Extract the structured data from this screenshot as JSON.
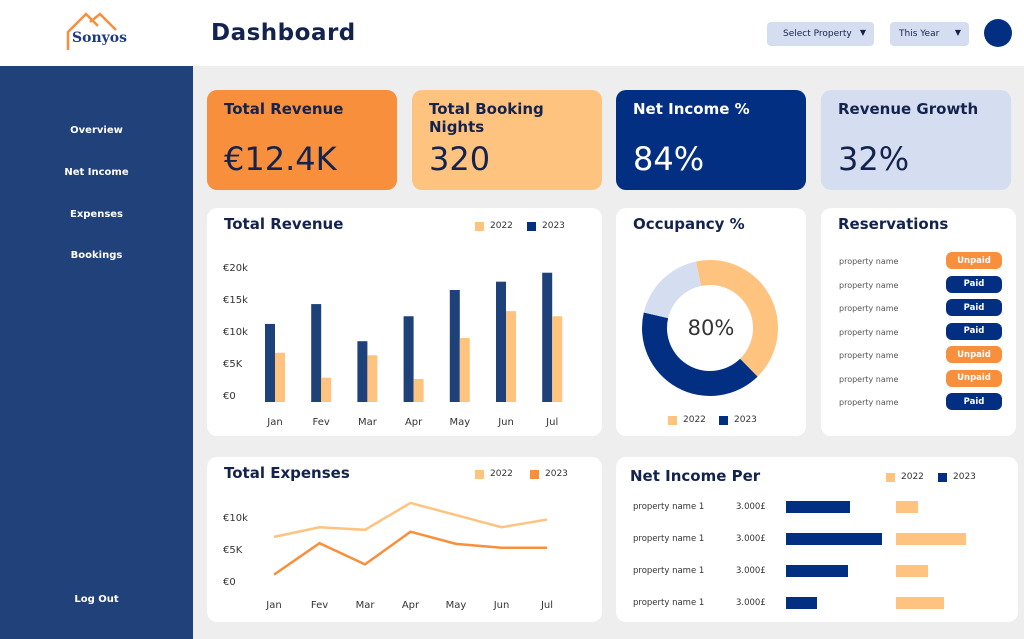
{
  "app": {
    "logo_text": "Sonyos",
    "title": "Dashboard"
  },
  "header": {
    "property_select": "Select Property",
    "period_select": "This Year",
    "dropdown_glyph": "▼"
  },
  "sidebar": {
    "items": [
      {
        "label": "Overview"
      },
      {
        "label": "Net Income"
      },
      {
        "label": "Expenses"
      },
      {
        "label": "Bookings"
      }
    ],
    "logout": "Log Out"
  },
  "kpis": [
    {
      "title": "Total Revenue",
      "value": "€12.4K",
      "color": "#f78f3d"
    },
    {
      "title": "Total Booking Nights",
      "value": "320",
      "color": "#ffc380"
    },
    {
      "title": "Net Income %",
      "value": "84%",
      "color": "#032f82"
    },
    {
      "title": "Revenue Growth",
      "value": "32%",
      "color": "#d5def0"
    }
  ],
  "colors": {
    "navy": "#1f4179",
    "dark_navy": "#032f82",
    "orange": "#f78f3d",
    "light_orange": "#ffc380",
    "light_blue": "#d5def0"
  },
  "chart_data": [
    {
      "type": "bar",
      "title": "Total Revenue",
      "categories": [
        "Jan",
        "Fev",
        "Mar",
        "Apr",
        "May",
        "Jun",
        "Jul"
      ],
      "yticks": [
        "€0",
        "€5K",
        "€10k",
        "€15k",
        "€20k"
      ],
      "ylim": [
        0,
        20000
      ],
      "legend": "top-right",
      "series": [
        {
          "name": "2022",
          "color": "#ffc380",
          "values": [
            7700,
            3800,
            7300,
            3600,
            10000,
            14200,
            13400
          ]
        },
        {
          "name": "2023",
          "color": "#1f4179",
          "values": [
            12200,
            15300,
            9500,
            13400,
            17500,
            18800,
            20200
          ]
        }
      ]
    },
    {
      "type": "pie",
      "title": "Occupancy %",
      "center_label": "80%",
      "legend": "bottom",
      "slices": [
        {
          "name": "2022",
          "value": 41,
          "color": "#ffc380"
        },
        {
          "name": "2023",
          "value": 41,
          "color": "#032f82"
        },
        {
          "name": "",
          "value": 18,
          "color": "#d5def0"
        }
      ]
    },
    {
      "type": "line",
      "title": "Total Expenses",
      "categories": [
        "Jan",
        "Fev",
        "Mar",
        "Apr",
        "May",
        "Jun",
        "Jul"
      ],
      "yticks": [
        "€0",
        "€5K",
        "€10k"
      ],
      "ylim": [
        0,
        10000
      ],
      "legend": "top-right",
      "series": [
        {
          "name": "2022",
          "color": "#ffc380",
          "values": [
            6900,
            8400,
            8000,
            12200,
            10300,
            8400,
            9600
          ]
        },
        {
          "name": "2023",
          "color": "#f78f3d",
          "values": [
            1000,
            5900,
            2600,
            7700,
            5800,
            5200,
            5200
          ]
        }
      ]
    },
    {
      "type": "bar",
      "orientation": "horizontal",
      "title": "Net Income Per",
      "legend": "top-right",
      "categories": [
        "property name 1",
        "property name 1",
        "property name 1",
        "property name 1"
      ],
      "value_labels": [
        "3.000£",
        "3.000£",
        "3.000£",
        "3.000£"
      ],
      "series": [
        {
          "name": "2022",
          "color": "#ffc380",
          "values": [
            22,
            70,
            32,
            48
          ]
        },
        {
          "name": "2023",
          "color": "#032f82",
          "values": [
            64,
            96,
            62,
            31
          ]
        }
      ]
    }
  ],
  "reservations": {
    "title": "Reservations",
    "rows": [
      {
        "name": "property name",
        "status": "Unpaid"
      },
      {
        "name": "property name",
        "status": "Paid"
      },
      {
        "name": "property name",
        "status": "Paid"
      },
      {
        "name": "property name",
        "status": "Paid"
      },
      {
        "name": "property name",
        "status": "Unpaid"
      },
      {
        "name": "property name",
        "status": "Unpaid"
      },
      {
        "name": "property name",
        "status": "Paid"
      }
    ]
  }
}
